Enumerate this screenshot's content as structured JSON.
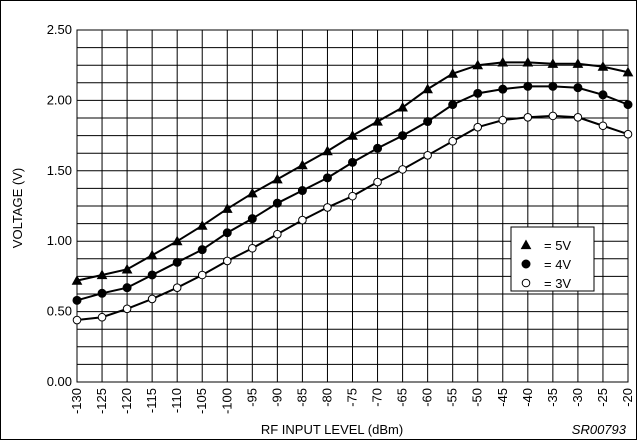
{
  "chart_data": {
    "type": "line",
    "xlabel": "RF INPUT LEVEL (dBm)",
    "ylabel": "VOLTAGE (V)",
    "figure_code": "SR00793",
    "x": [
      -130,
      -125,
      -120,
      -115,
      -110,
      -105,
      -100,
      -95,
      -90,
      -85,
      -80,
      -75,
      -70,
      -65,
      -60,
      -55,
      -50,
      -45,
      -40,
      -35,
      -30,
      -25,
      -20
    ],
    "x_tick_labels": [
      "-130",
      "-125",
      "-120",
      "-115",
      "-110",
      "-105",
      "-100",
      "-95",
      "-90",
      "-85",
      "-80",
      "-75",
      "-70",
      "-65",
      "-60",
      "-55",
      "-50",
      "-45",
      "-40",
      "-35",
      "-30",
      "-25",
      "-20"
    ],
    "xlim": [
      -130,
      -20
    ],
    "ylim": [
      0,
      2.5
    ],
    "y_ticks": [
      0,
      0.5,
      1.0,
      1.5,
      2.0,
      2.5
    ],
    "y_tick_labels": [
      "0.00",
      "0.50",
      "1.00",
      "1.50",
      "2.00",
      "2.50"
    ],
    "grid": true,
    "legend_position": "right-center",
    "series": [
      {
        "name": "= 5V",
        "marker": "filled-triangle",
        "values": [
          0.72,
          0.76,
          0.8,
          0.9,
          1.0,
          1.11,
          1.23,
          1.34,
          1.44,
          1.54,
          1.64,
          1.75,
          1.85,
          1.95,
          2.08,
          2.19,
          2.25,
          2.27,
          2.27,
          2.26,
          2.26,
          2.24,
          2.2
        ]
      },
      {
        "name": "= 4V",
        "marker": "filled-circle",
        "values": [
          0.58,
          0.63,
          0.67,
          0.76,
          0.85,
          0.94,
          1.06,
          1.16,
          1.27,
          1.36,
          1.45,
          1.56,
          1.66,
          1.75,
          1.85,
          1.97,
          2.05,
          2.08,
          2.1,
          2.1,
          2.09,
          2.04,
          1.97
        ]
      },
      {
        "name": "= 3V",
        "marker": "open-circle",
        "values": [
          0.44,
          0.46,
          0.52,
          0.59,
          0.67,
          0.76,
          0.86,
          0.95,
          1.05,
          1.15,
          1.24,
          1.32,
          1.42,
          1.51,
          1.61,
          1.71,
          1.81,
          1.86,
          1.88,
          1.89,
          1.88,
          1.82,
          1.76
        ]
      }
    ],
    "colors": {
      "line": "#000000",
      "grid": "#000000",
      "background": "#ffffff"
    }
  }
}
